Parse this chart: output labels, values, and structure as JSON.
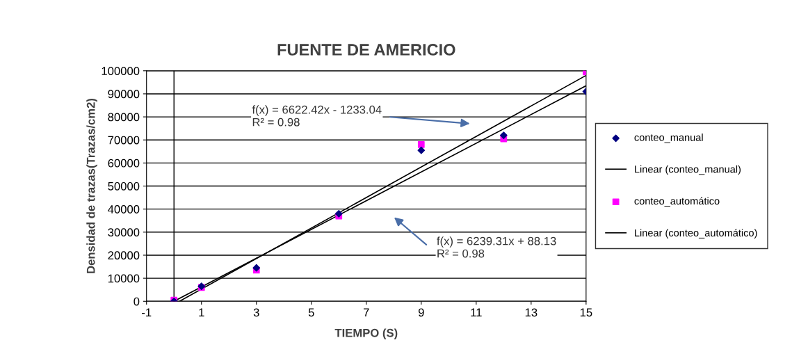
{
  "chart_data": {
    "type": "scatter",
    "title": "FUENTE DE AMERICIO",
    "xlabel": "TIEMPO (S)",
    "ylabel": "Densidad de trazas(Trazas/cm2)",
    "x": [
      0,
      1,
      3,
      6,
      9,
      12,
      15
    ],
    "series": [
      {
        "name": "conteo_manual",
        "color": "#000080",
        "marker": "diamond",
        "values": [
          0,
          6500,
          14500,
          38000,
          65500,
          72000,
          91000
        ]
      },
      {
        "name": "Linear (conteo_manual)",
        "type": "line",
        "color": "#000000",
        "marker": "none",
        "x": [
          0,
          15
        ],
        "values": [
          0,
          93500
        ]
      },
      {
        "name": "conteo_automático",
        "color": "#ff00ff",
        "marker": "square",
        "values": [
          500,
          6000,
          13500,
          37000,
          68000,
          70500,
          99500
        ]
      },
      {
        "name": "Linear (conteo_automático)",
        "type": "line",
        "color": "#000000",
        "marker": "none",
        "x": [
          0.2,
          15
        ],
        "values": [
          0,
          98000
        ]
      }
    ],
    "annotations": [
      "f(x) = 6622.42x - 1233.04\nR² = 0.98",
      "f(x) = 6239.31x + 88.13\nR² = 0.98"
    ],
    "ref_lines": [
      {
        "axis": "x",
        "value": 0,
        "color": "#000000"
      }
    ],
    "xlim": [
      -1,
      15
    ],
    "xticks": [
      -1,
      1,
      3,
      5,
      7,
      9,
      11,
      13,
      15
    ],
    "ylim": [
      0,
      100000
    ],
    "yticks": [
      0,
      10000,
      20000,
      30000,
      40000,
      50000,
      60000,
      70000,
      80000,
      90000,
      100000
    ],
    "grid": "y",
    "legend": "right"
  }
}
